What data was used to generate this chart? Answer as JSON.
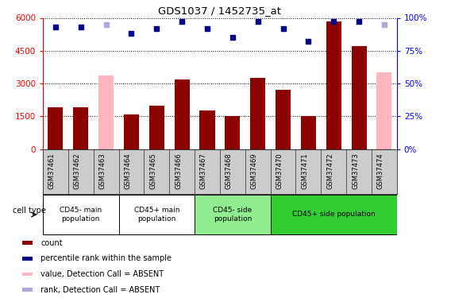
{
  "title": "GDS1037 / 1452735_at",
  "samples": [
    "GSM37461",
    "GSM37462",
    "GSM37463",
    "GSM37464",
    "GSM37465",
    "GSM37466",
    "GSM37467",
    "GSM37468",
    "GSM37469",
    "GSM37470",
    "GSM37471",
    "GSM37472",
    "GSM37473",
    "GSM37474"
  ],
  "bar_values": [
    1900,
    1900,
    null,
    1600,
    2000,
    3200,
    1750,
    1500,
    3250,
    2700,
    1500,
    5850,
    4700,
    null
  ],
  "bar_absent": [
    null,
    null,
    3350,
    null,
    null,
    null,
    null,
    null,
    null,
    null,
    null,
    null,
    null,
    3500
  ],
  "bar_color_present": "#8B0000",
  "bar_color_absent": "#FFB6C1",
  "dot_values": [
    93,
    93,
    95,
    88,
    92,
    97,
    92,
    85,
    97,
    92,
    82,
    97,
    97,
    95
  ],
  "dot_absent_indices": [
    2,
    13
  ],
  "dot_color_present": "#00008B",
  "dot_color_absent": "#AAAADD",
  "ylim_left": [
    0,
    6000
  ],
  "ylim_right": [
    0,
    100
  ],
  "yticks_left": [
    0,
    1500,
    3000,
    4500,
    6000
  ],
  "yticks_right": [
    0,
    25,
    50,
    75,
    100
  ],
  "cell_groups": [
    {
      "label": "CD45- main\npopulation",
      "start": 0,
      "end": 2,
      "color": "#ffffff"
    },
    {
      "label": "CD45+ main\npopulation",
      "start": 3,
      "end": 5,
      "color": "#ffffff"
    },
    {
      "label": "CD45- side\npopulation",
      "start": 6,
      "end": 8,
      "color": "#90EE90"
    },
    {
      "label": "CD45+ side population",
      "start": 9,
      "end": 13,
      "color": "#33CC33"
    }
  ],
  "legend_labels": [
    "count",
    "percentile rank within the sample",
    "value, Detection Call = ABSENT",
    "rank, Detection Call = ABSENT"
  ],
  "legend_colors": [
    "#8B0000",
    "#00008B",
    "#FFB6C1",
    "#AAAADD"
  ],
  "cell_type_label": "cell type",
  "tick_area_color": "#cccccc"
}
